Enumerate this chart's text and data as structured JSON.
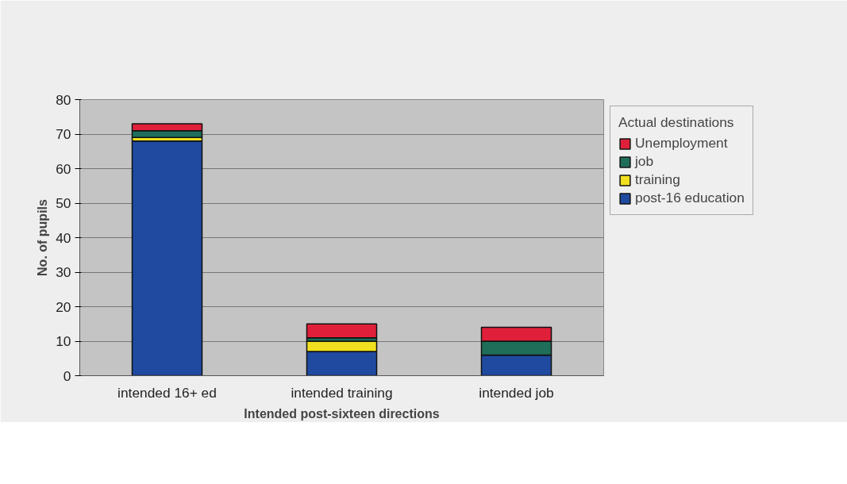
{
  "chart_data": {
    "type": "bar",
    "stacked": true,
    "xlabel": "Intended post-sixteen directions",
    "ylabel": "No. of pupils",
    "legend_title": "Actual destinations",
    "categories": [
      "intended 16+ ed",
      "intended training",
      "intended job"
    ],
    "series": [
      {
        "name": "post-16 education",
        "color": "#1f4aa0",
        "values": [
          68,
          7,
          6
        ]
      },
      {
        "name": "training",
        "color": "#f0e020",
        "values": [
          1,
          3,
          0
        ]
      },
      {
        "name": "job",
        "color": "#1f6e5a",
        "values": [
          2,
          1,
          4
        ]
      },
      {
        "name": "Unemployment",
        "color": "#e0203a",
        "values": [
          2,
          4,
          4
        ]
      }
    ],
    "ylim": [
      0,
      80
    ],
    "yticks": [
      0,
      10,
      20,
      30,
      40,
      50,
      60,
      70,
      80
    ],
    "grid": "y",
    "legend": "right"
  }
}
